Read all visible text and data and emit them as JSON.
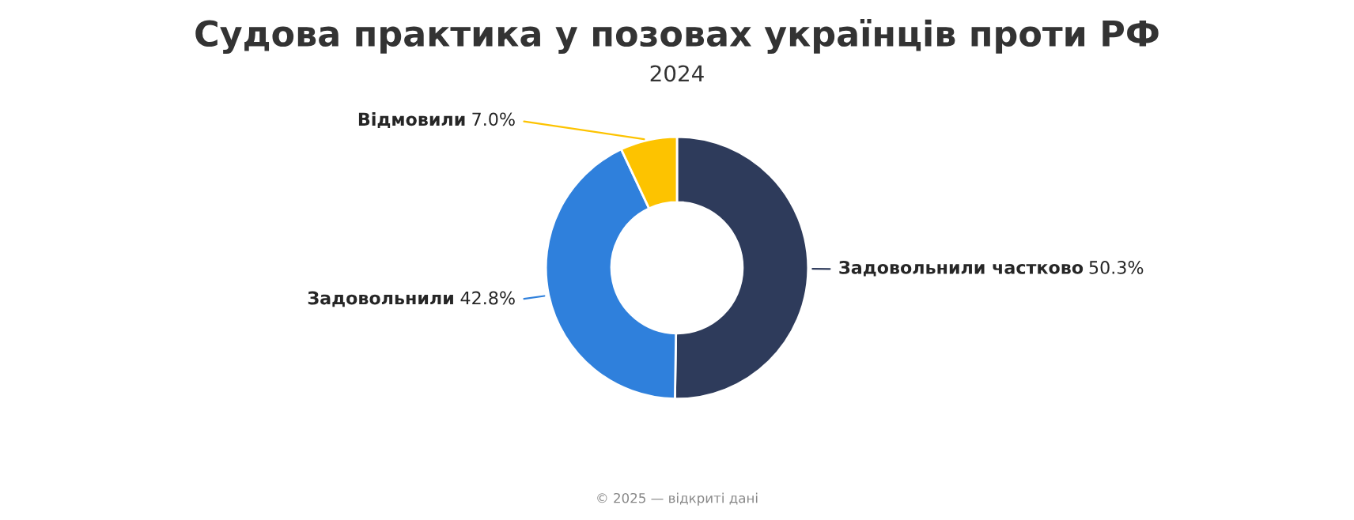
{
  "chart_data": {
    "type": "donut",
    "title": "Судова практика у позовах українців проти РФ",
    "subtitle": "2024",
    "categories": [
      "Задовольнили частково",
      "Задовольнили",
      "Відмовили"
    ],
    "values": [
      50.3,
      42.8,
      7.0
    ],
    "colors": [
      "#2e3b5b",
      "#2f80dc",
      "#fdc300"
    ],
    "value_labels": [
      "50.3%",
      "42.8%",
      "7.0%"
    ],
    "annotations": [
      "© 2025 — відкриті дані"
    ]
  }
}
